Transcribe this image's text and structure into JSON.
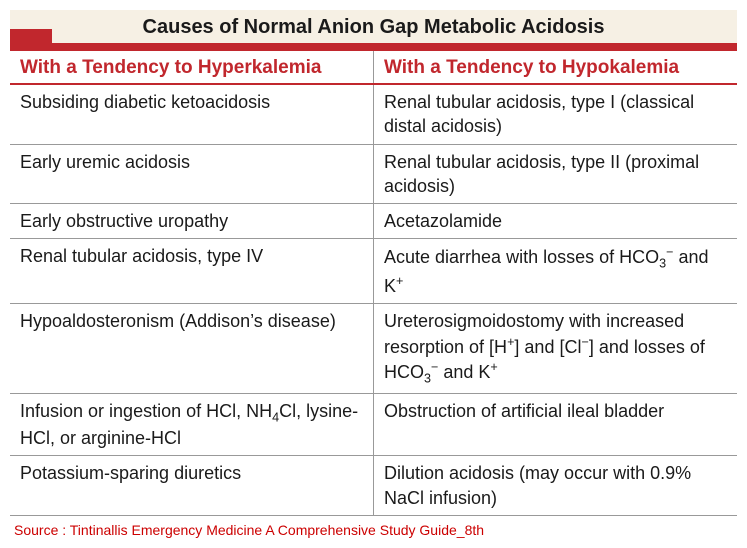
{
  "title": "Causes of Normal Anion Gap Metabolic Acidosis",
  "columns": {
    "left": "With a Tendency to Hyperkalemia",
    "right": "With a Tendency to Hypokalemia"
  },
  "rows": [
    {
      "left": "Subsiding diabetic ketoacidosis",
      "right": "Renal tubular acidosis, type I (classical distal acidosis)"
    },
    {
      "left": "Early uremic acidosis",
      "right": "Renal tubular acidosis, type II (proximal acidosis)"
    },
    {
      "left": "Early obstructive uropathy",
      "right": "Acetazolamide"
    },
    {
      "left": "Renal tubular acidosis, type IV",
      "right_html": "Acute diarrhea with losses of HCO<sub>3</sub><sup>−</sup> and K<sup>+</sup>"
    },
    {
      "left": "Hypoaldosteronism (Addison’s disease)",
      "right_html": "Ureterosigmoidostomy with increased resorption of [H<sup>+</sup>] and [Cl<sup>−</sup>] and losses of HCO<sub>3</sub><sup>−</sup> and K<sup>+</sup>"
    },
    {
      "left_html": "Infusion or ingestion of HCl, NH<sub>4</sub>Cl, lysine-HCl, or arginine-HCl",
      "right": "Obstruction of artificial ileal bladder"
    },
    {
      "left": "Potassium-sparing diuretics",
      "right": "Dilution acidosis (may occur with 0.9% NaCl infusion)"
    }
  ],
  "source": "Source : Tintinallis Emergency Medicine A Comprehensive Study Guide_8th",
  "colors": {
    "accent": "#c1272d",
    "title_bg": "#f6f0e4",
    "border": "#999999",
    "text": "#1a1a1a",
    "source": "#cc0000"
  }
}
